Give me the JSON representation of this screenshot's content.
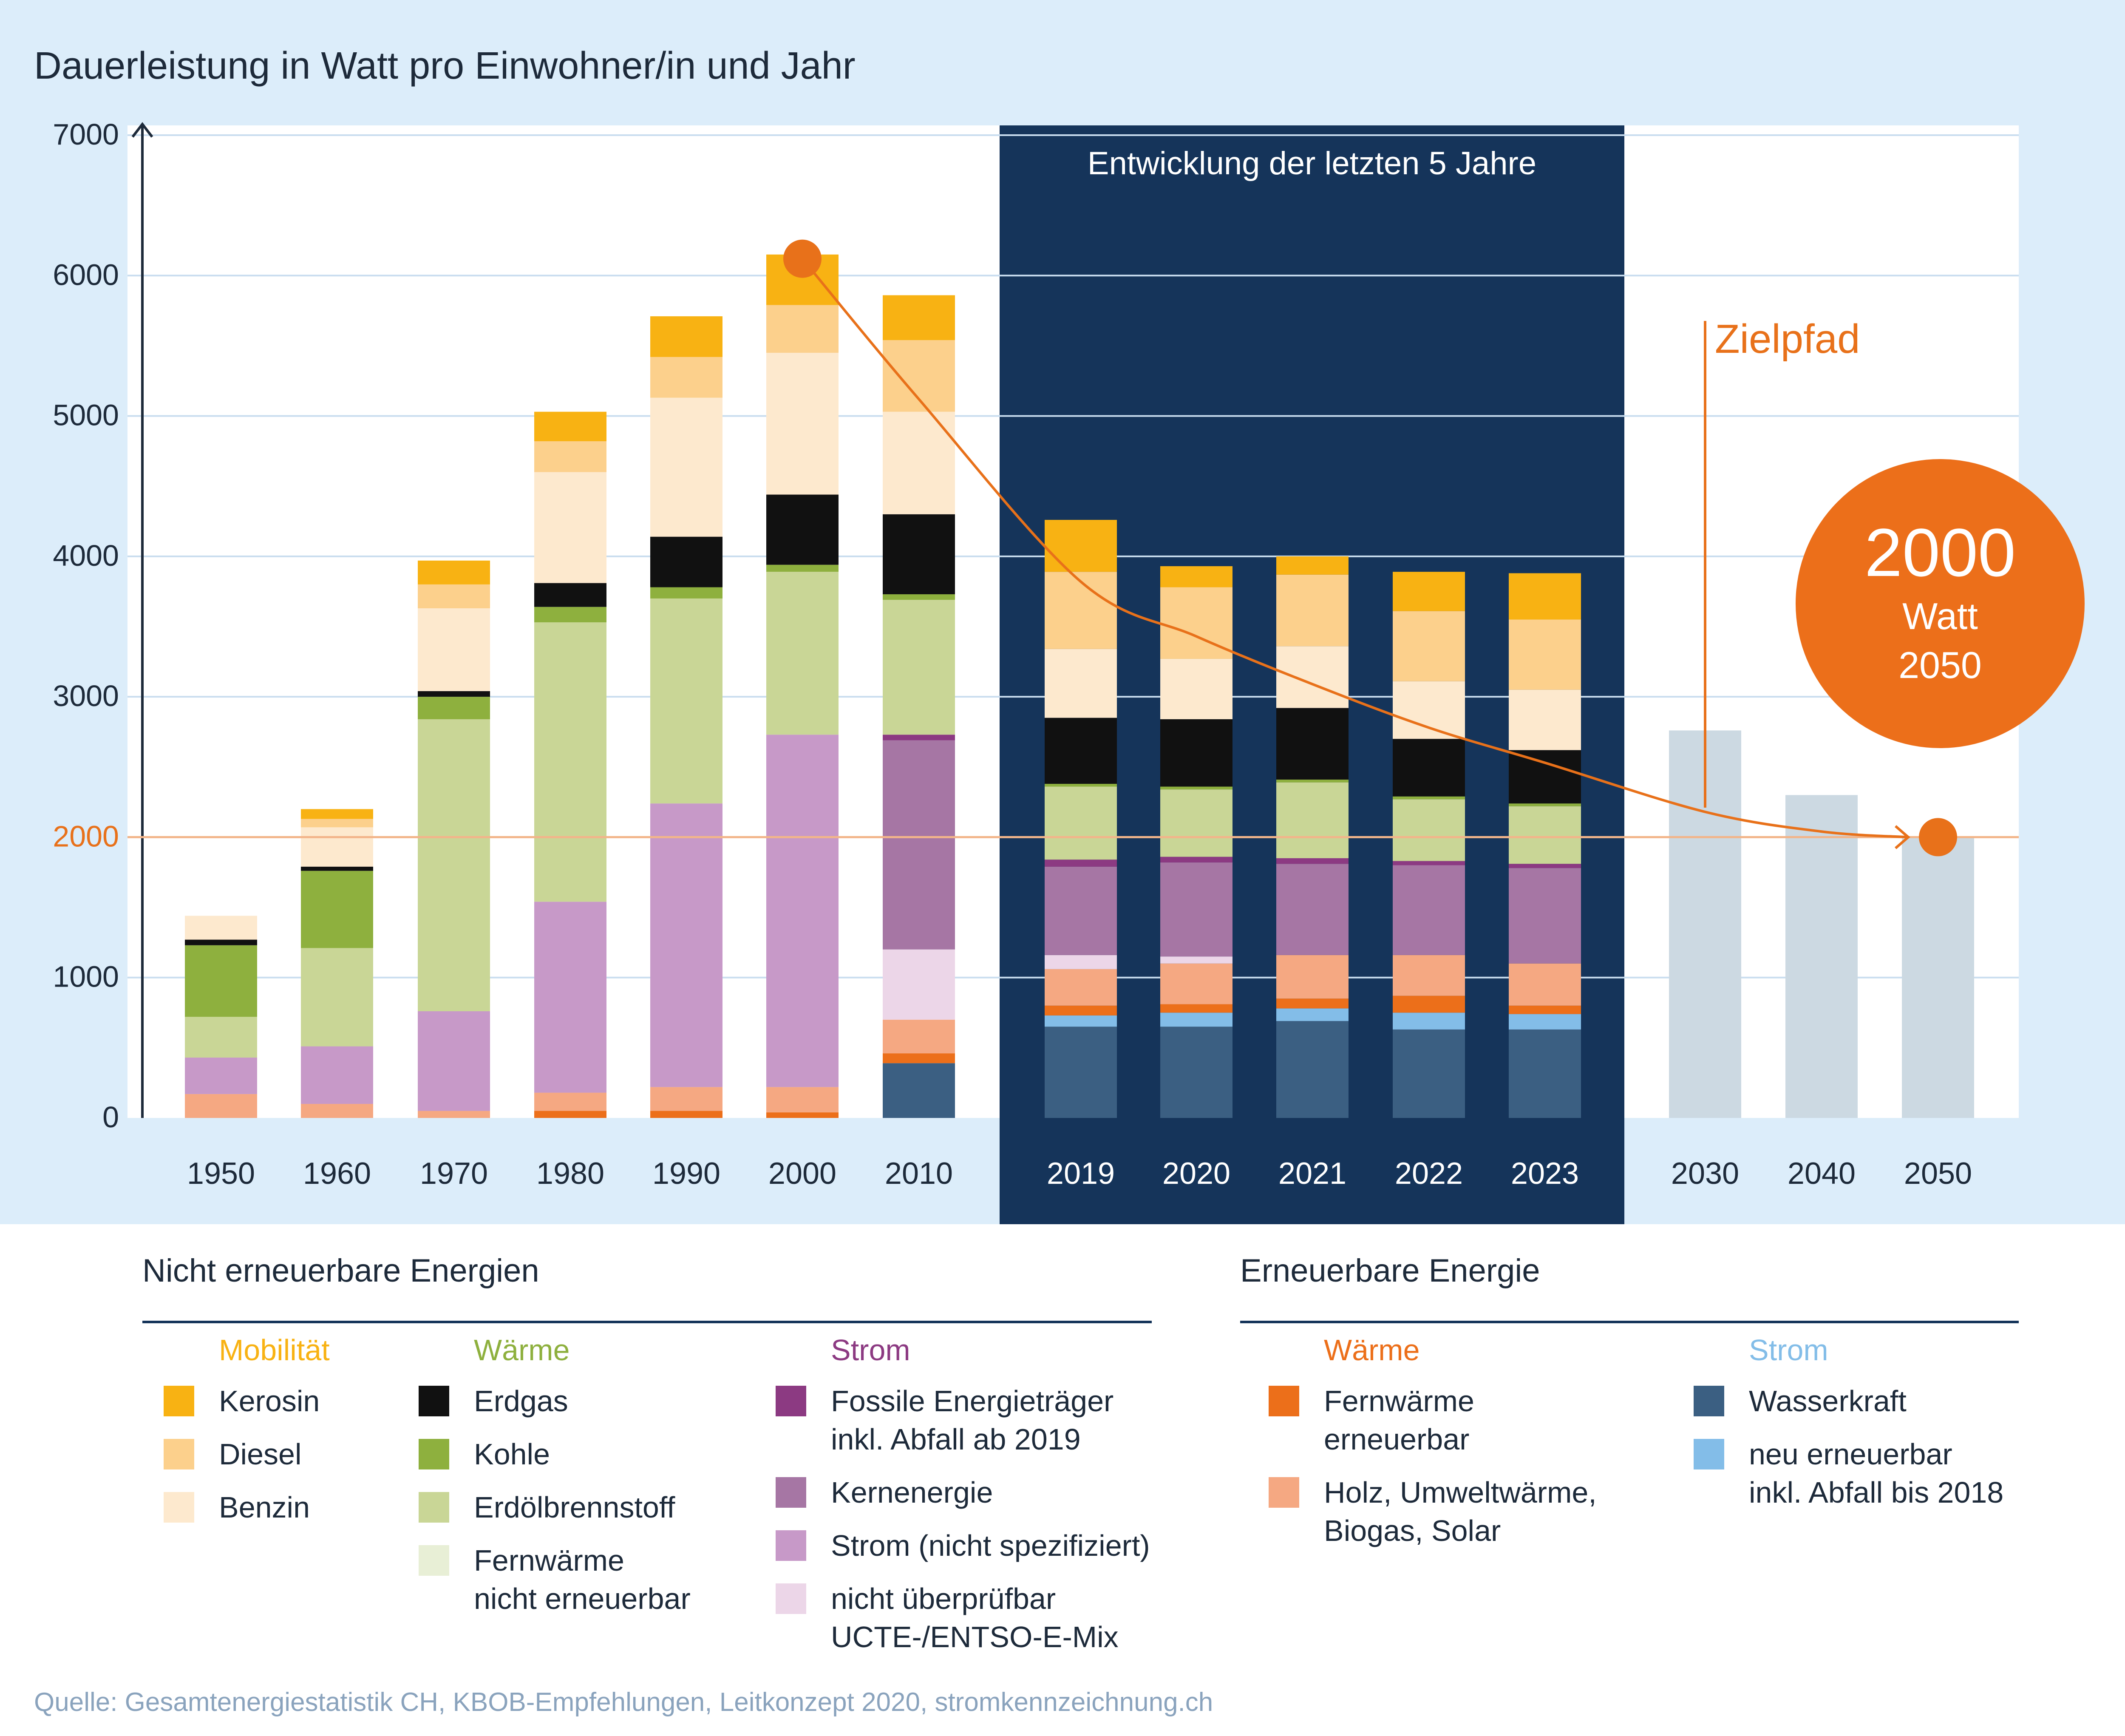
{
  "title": "Dauerleistung in Watt pro Einwohner/in und Jahr",
  "source": "Quelle: Gesamtenergiestatistik CH, KBOB-Empfehlungen, Leitkonzept 2020, stromkennzeichnung.ch",
  "highlight_label": "Entwicklung der letzten 5 Jahre",
  "zielpfad_label": "Zielpfad",
  "target_badge": {
    "value": "2000",
    "unit": "Watt",
    "year": "2050"
  },
  "colors": {
    "panel": "#dcedfa",
    "plot": "#ffffff",
    "highlight": "#15345a",
    "grid": "#c9ddef",
    "text": "#1d2a3a",
    "accent": "#e8711a",
    "target_line": "#f2b58a",
    "target_bar": "#ccd9e2",
    "source_text": "#8aa3bd"
  },
  "chart_data": {
    "type": "bar",
    "stacked": true,
    "ylim": [
      0,
      7000
    ],
    "yticks": [
      "0",
      "1000",
      "2000",
      "3000",
      "4000",
      "5000",
      "6000",
      "7000"
    ],
    "reference_line": 2000,
    "categories": [
      "1950",
      "1960",
      "1970",
      "1980",
      "1990",
      "2000",
      "2010",
      "2019",
      "2020",
      "2021",
      "2022",
      "2023",
      "2030",
      "2040",
      "2050"
    ],
    "series": [
      {
        "name": "Wasserkraft",
        "color": "#3b5f82",
        "values": [
          0,
          0,
          0,
          0,
          0,
          0,
          390,
          650,
          650,
          690,
          630,
          630,
          0,
          0,
          0
        ]
      },
      {
        "name": "neu erneuerbar inkl. Abfall bis 2018",
        "color": "#83bde8",
        "values": [
          0,
          0,
          0,
          0,
          0,
          0,
          0,
          80,
          100,
          90,
          120,
          110,
          0,
          0,
          0
        ]
      },
      {
        "name": "Fernwärme erneuerbar",
        "color": "#ec6f1a",
        "values": [
          0,
          0,
          0,
          50,
          50,
          40,
          70,
          70,
          60,
          70,
          120,
          60,
          0,
          0,
          0
        ]
      },
      {
        "name": "Holz, Umweltwärme, Biogas, Solar",
        "color": "#f5a882",
        "values": [
          170,
          100,
          50,
          130,
          170,
          180,
          240,
          260,
          290,
          310,
          290,
          300,
          0,
          0,
          0
        ]
      },
      {
        "name": "nicht überprüfbar UCTE-/ENTSO-E-Mix",
        "color": "#ecd6e8",
        "values": [
          0,
          0,
          0,
          0,
          0,
          0,
          500,
          100,
          50,
          0,
          0,
          0,
          0,
          0,
          0
        ]
      },
      {
        "name": "Strom (nicht spezifiziert)",
        "color": "#c799c8",
        "values": [
          260,
          410,
          710,
          1360,
          2020,
          2510,
          0,
          0,
          0,
          0,
          0,
          0,
          0,
          0,
          0
        ]
      },
      {
        "name": "Kernenergie",
        "color": "#a676a4",
        "values": [
          0,
          0,
          0,
          0,
          0,
          0,
          1490,
          630,
          670,
          650,
          640,
          680,
          0,
          0,
          0
        ]
      },
      {
        "name": "Fossile Energieträger inkl. Abfall ab 2019",
        "color": "#8c3a82",
        "values": [
          0,
          0,
          0,
          0,
          0,
          0,
          40,
          50,
          40,
          40,
          30,
          30,
          0,
          0,
          0
        ]
      },
      {
        "name": "Fernwärme nicht erneuerbar",
        "color": "#e8efd6",
        "values": [
          0,
          0,
          0,
          0,
          0,
          0,
          0,
          0,
          0,
          0,
          0,
          0,
          0,
          0,
          0
        ]
      },
      {
        "name": "Erdölbrennstoff",
        "color": "#c9d696",
        "values": [
          290,
          700,
          2080,
          1990,
          1460,
          1160,
          960,
          520,
          480,
          540,
          440,
          410,
          0,
          0,
          0
        ]
      },
      {
        "name": "Kohle",
        "color": "#8eb03e",
        "values": [
          510,
          550,
          160,
          110,
          80,
          50,
          40,
          20,
          20,
          20,
          20,
          20,
          0,
          0,
          0
        ]
      },
      {
        "name": "Erdgas",
        "color": "#111111",
        "values": [
          40,
          30,
          40,
          170,
          360,
          500,
          570,
          470,
          480,
          510,
          410,
          380,
          0,
          0,
          0
        ]
      },
      {
        "name": "Benzin",
        "color": "#fde9ce",
        "values": [
          170,
          280,
          590,
          790,
          990,
          1010,
          730,
          490,
          430,
          440,
          410,
          430,
          0,
          0,
          0
        ]
      },
      {
        "name": "Diesel",
        "color": "#fcd08c",
        "values": [
          0,
          60,
          170,
          220,
          290,
          340,
          510,
          550,
          510,
          510,
          500,
          500,
          0,
          0,
          0
        ]
      },
      {
        "name": "Kerosin",
        "color": "#f8b213",
        "values": [
          0,
          70,
          170,
          210,
          290,
          360,
          320,
          370,
          150,
          130,
          280,
          330,
          0,
          0,
          0
        ]
      },
      {
        "name": "Zielpfad",
        "color": "#ccd9e2",
        "values": [
          0,
          0,
          0,
          0,
          0,
          0,
          0,
          0,
          0,
          0,
          0,
          0,
          2760,
          2300,
          2000
        ]
      }
    ],
    "zielpfad_curve": [
      {
        "x": "2000",
        "y": 6120
      },
      {
        "x": "2010",
        "y": 5120
      },
      {
        "x": "2019",
        "y": 3820
      },
      {
        "x": "2020",
        "y": 3430
      },
      {
        "x": "2021",
        "y": 3090
      },
      {
        "x": "2022",
        "y": 2780
      },
      {
        "x": "2023",
        "y": 2530
      },
      {
        "x": "2030",
        "y": 2180
      },
      {
        "x": "2040",
        "y": 2040
      },
      {
        "x": "2050",
        "y": 2000
      }
    ]
  },
  "legend": {
    "non_renewable": {
      "heading": "Nicht erneuerbare Energien",
      "groups": [
        {
          "title": "Mobilität",
          "color": "#f8b213",
          "items": [
            {
              "label": "Kerosin",
              "color": "#f8b213"
            },
            {
              "label": "Diesel",
              "color": "#fcd08c"
            },
            {
              "label": "Benzin",
              "color": "#fde9ce"
            }
          ]
        },
        {
          "title": "Wärme",
          "color": "#8eb03e",
          "items": [
            {
              "label": "Erdgas",
              "color": "#111111"
            },
            {
              "label": "Kohle",
              "color": "#8eb03e"
            },
            {
              "label": "Erdölbrennstoff",
              "color": "#c9d696"
            },
            {
              "label": "Fernwärme\nnicht erneuerbar",
              "color": "#e8efd6"
            }
          ]
        },
        {
          "title": "Strom",
          "color": "#8c3a82",
          "items": [
            {
              "label": "Fossile Energieträger\ninkl. Abfall ab 2019",
              "color": "#8c3a82"
            },
            {
              "label": "Kernenergie",
              "color": "#a676a4"
            },
            {
              "label": "Strom (nicht spezifiziert)",
              "color": "#c799c8"
            },
            {
              "label": "nicht überprüfbar\nUCTE-/ENTSO-E-Mix",
              "color": "#ecd6e8"
            }
          ]
        }
      ]
    },
    "renewable": {
      "heading": "Erneuerbare Energie",
      "groups": [
        {
          "title": "Wärme",
          "color": "#ec6f1a",
          "items": [
            {
              "label": "Fernwärme\nerneuerbar",
              "color": "#ec6f1a"
            },
            {
              "label": "Holz, Umweltwärme,\nBiogas, Solar",
              "color": "#f5a882"
            }
          ]
        },
        {
          "title": "Strom",
          "color": "#83bde8",
          "items": [
            {
              "label": "Wasserkraft",
              "color": "#3b5f82"
            },
            {
              "label": "neu erneuerbar\ninkl. Abfall bis 2018",
              "color": "#83bde8"
            }
          ]
        }
      ]
    }
  }
}
